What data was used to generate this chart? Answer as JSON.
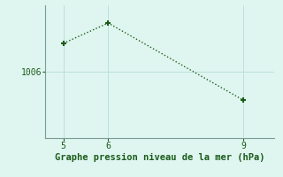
{
  "x": [
    5,
    6,
    9
  ],
  "y": [
    1009.2,
    1011.5,
    1002.8
  ],
  "line_color": "#1a5c1a",
  "marker": "+",
  "marker_size": 5,
  "marker_linewidth": 1.5,
  "linestyle": ":",
  "linewidth": 1.0,
  "bg_color": "#dff5f0",
  "grid_color": "#b8ddd8",
  "xlabel": "Graphe pression niveau de la mer (hPa)",
  "xlabel_color": "#1a5c1a",
  "xlabel_fontsize": 7.5,
  "tick_color": "#1a5c1a",
  "tick_fontsize": 7,
  "yticks": [
    1006
  ],
  "xlim": [
    4.6,
    9.7
  ],
  "ylim": [
    998.5,
    1013.5
  ],
  "xticks": [
    5,
    6,
    9
  ],
  "spine_color": "#7a9a97",
  "spine_linewidth": 0.8
}
